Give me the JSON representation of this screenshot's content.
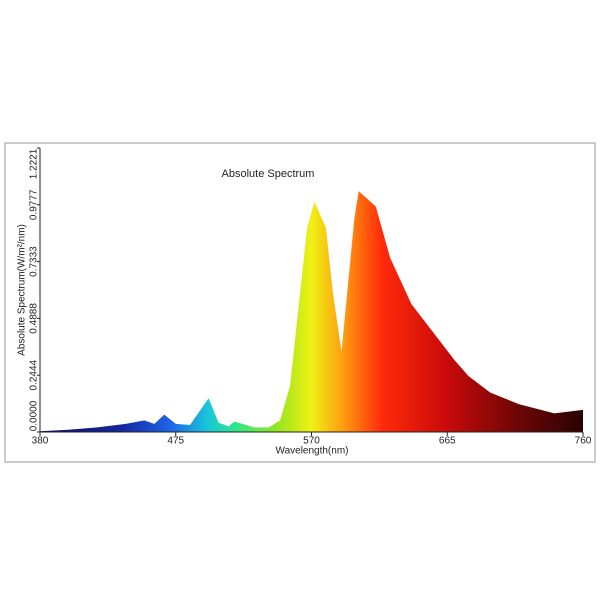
{
  "chart_data": {
    "type": "area",
    "title": "Absolute Spectrum",
    "x_label": "Wavelength(nm)",
    "y_label": "Absolute Spectrum(W/m²/nm)",
    "x": [
      380,
      400,
      420,
      440,
      453,
      460,
      467,
      475,
      485,
      498,
      505,
      512,
      516,
      530,
      540,
      548,
      555,
      562,
      567,
      572,
      580,
      585,
      591,
      595,
      600,
      603,
      615,
      625,
      640,
      655,
      670,
      680,
      695,
      715,
      740,
      760
    ],
    "values": [
      0.003,
      0.01,
      0.02,
      0.035,
      0.05,
      0.035,
      0.075,
      0.035,
      0.03,
      0.145,
      0.04,
      0.025,
      0.045,
      0.02,
      0.02,
      0.05,
      0.2,
      0.6,
      0.88,
      0.99,
      0.88,
      0.6,
      0.345,
      0.6,
      0.92,
      1.037,
      0.97,
      0.75,
      0.55,
      0.43,
      0.31,
      0.24,
      0.17,
      0.12,
      0.08,
      0.095
    ],
    "xlim": [
      380,
      760
    ],
    "xticks": [
      380,
      475,
      570,
      665,
      760
    ],
    "ylim": [
      0,
      1.2221
    ],
    "yticks": [
      {
        "value": 0,
        "label": "0.0000"
      },
      {
        "value": 0.2444,
        "label": "0.2444"
      },
      {
        "value": 0.4888,
        "label": "0.4888"
      },
      {
        "value": 0.7333,
        "label": "0.7333"
      },
      {
        "value": 0.9777,
        "label": "0.9777"
      },
      1.2221
    ]
  }
}
